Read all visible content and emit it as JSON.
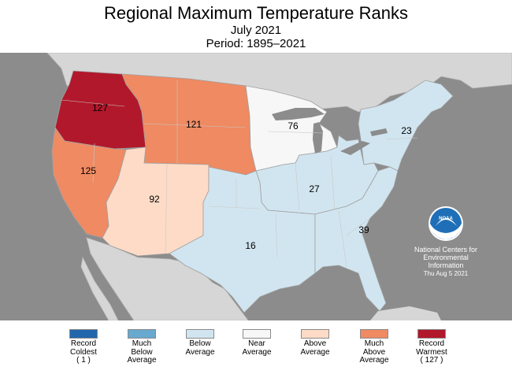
{
  "header": {
    "title": "Regional Maximum Temperature Ranks",
    "month": "July 2021",
    "period": "Period: 1895–2021"
  },
  "colors": {
    "ocean": "#8c8c8c",
    "land_other": "#d6d6d6",
    "lakes": "#8c8c8c",
    "state_lines": "#b9b9b9",
    "region_border": "#a0a0a0",
    "record_coldest": "#2166ac",
    "much_below": "#67a9cf",
    "below": "#d1e5f0",
    "near": "#f7f7f7",
    "above": "#fddbc7",
    "much_above": "#ef8a62",
    "record_warmest": "#b2182b"
  },
  "regions": [
    {
      "id": "northwest",
      "rank": "127",
      "category": "record_warmest"
    },
    {
      "id": "northern-rockies-plains",
      "rank": "121",
      "category": "much_above"
    },
    {
      "id": "upper-midwest",
      "rank": "76",
      "category": "near"
    },
    {
      "id": "northeast",
      "rank": "23",
      "category": "below"
    },
    {
      "id": "west",
      "rank": "125",
      "category": "much_above"
    },
    {
      "id": "southwest",
      "rank": "92",
      "category": "above"
    },
    {
      "id": "ohio-valley",
      "rank": "27",
      "category": "below"
    },
    {
      "id": "south",
      "rank": "16",
      "category": "below"
    },
    {
      "id": "southeast",
      "rank": "39",
      "category": "below"
    }
  ],
  "logo": {
    "name": "NOAA",
    "credit_line1": "National Centers for",
    "credit_line2": "Environmental",
    "credit_line3": "Information",
    "credit_date": "Thu Aug  5 2021"
  },
  "legend": [
    {
      "label": "Record\nColdest\n( 1 )",
      "color": "#2166ac"
    },
    {
      "label": "Much\nBelow\nAverage",
      "color": "#67a9cf"
    },
    {
      "label": "Below\nAverage",
      "color": "#d1e5f0"
    },
    {
      "label": "Near\nAverage",
      "color": "#f7f7f7"
    },
    {
      "label": "Above\nAverage",
      "color": "#fddbc7"
    },
    {
      "label": "Much\nAbove\nAverage",
      "color": "#ef8a62"
    },
    {
      "label": "Record\nWarmest\n( 127 )",
      "color": "#b2182b"
    }
  ]
}
